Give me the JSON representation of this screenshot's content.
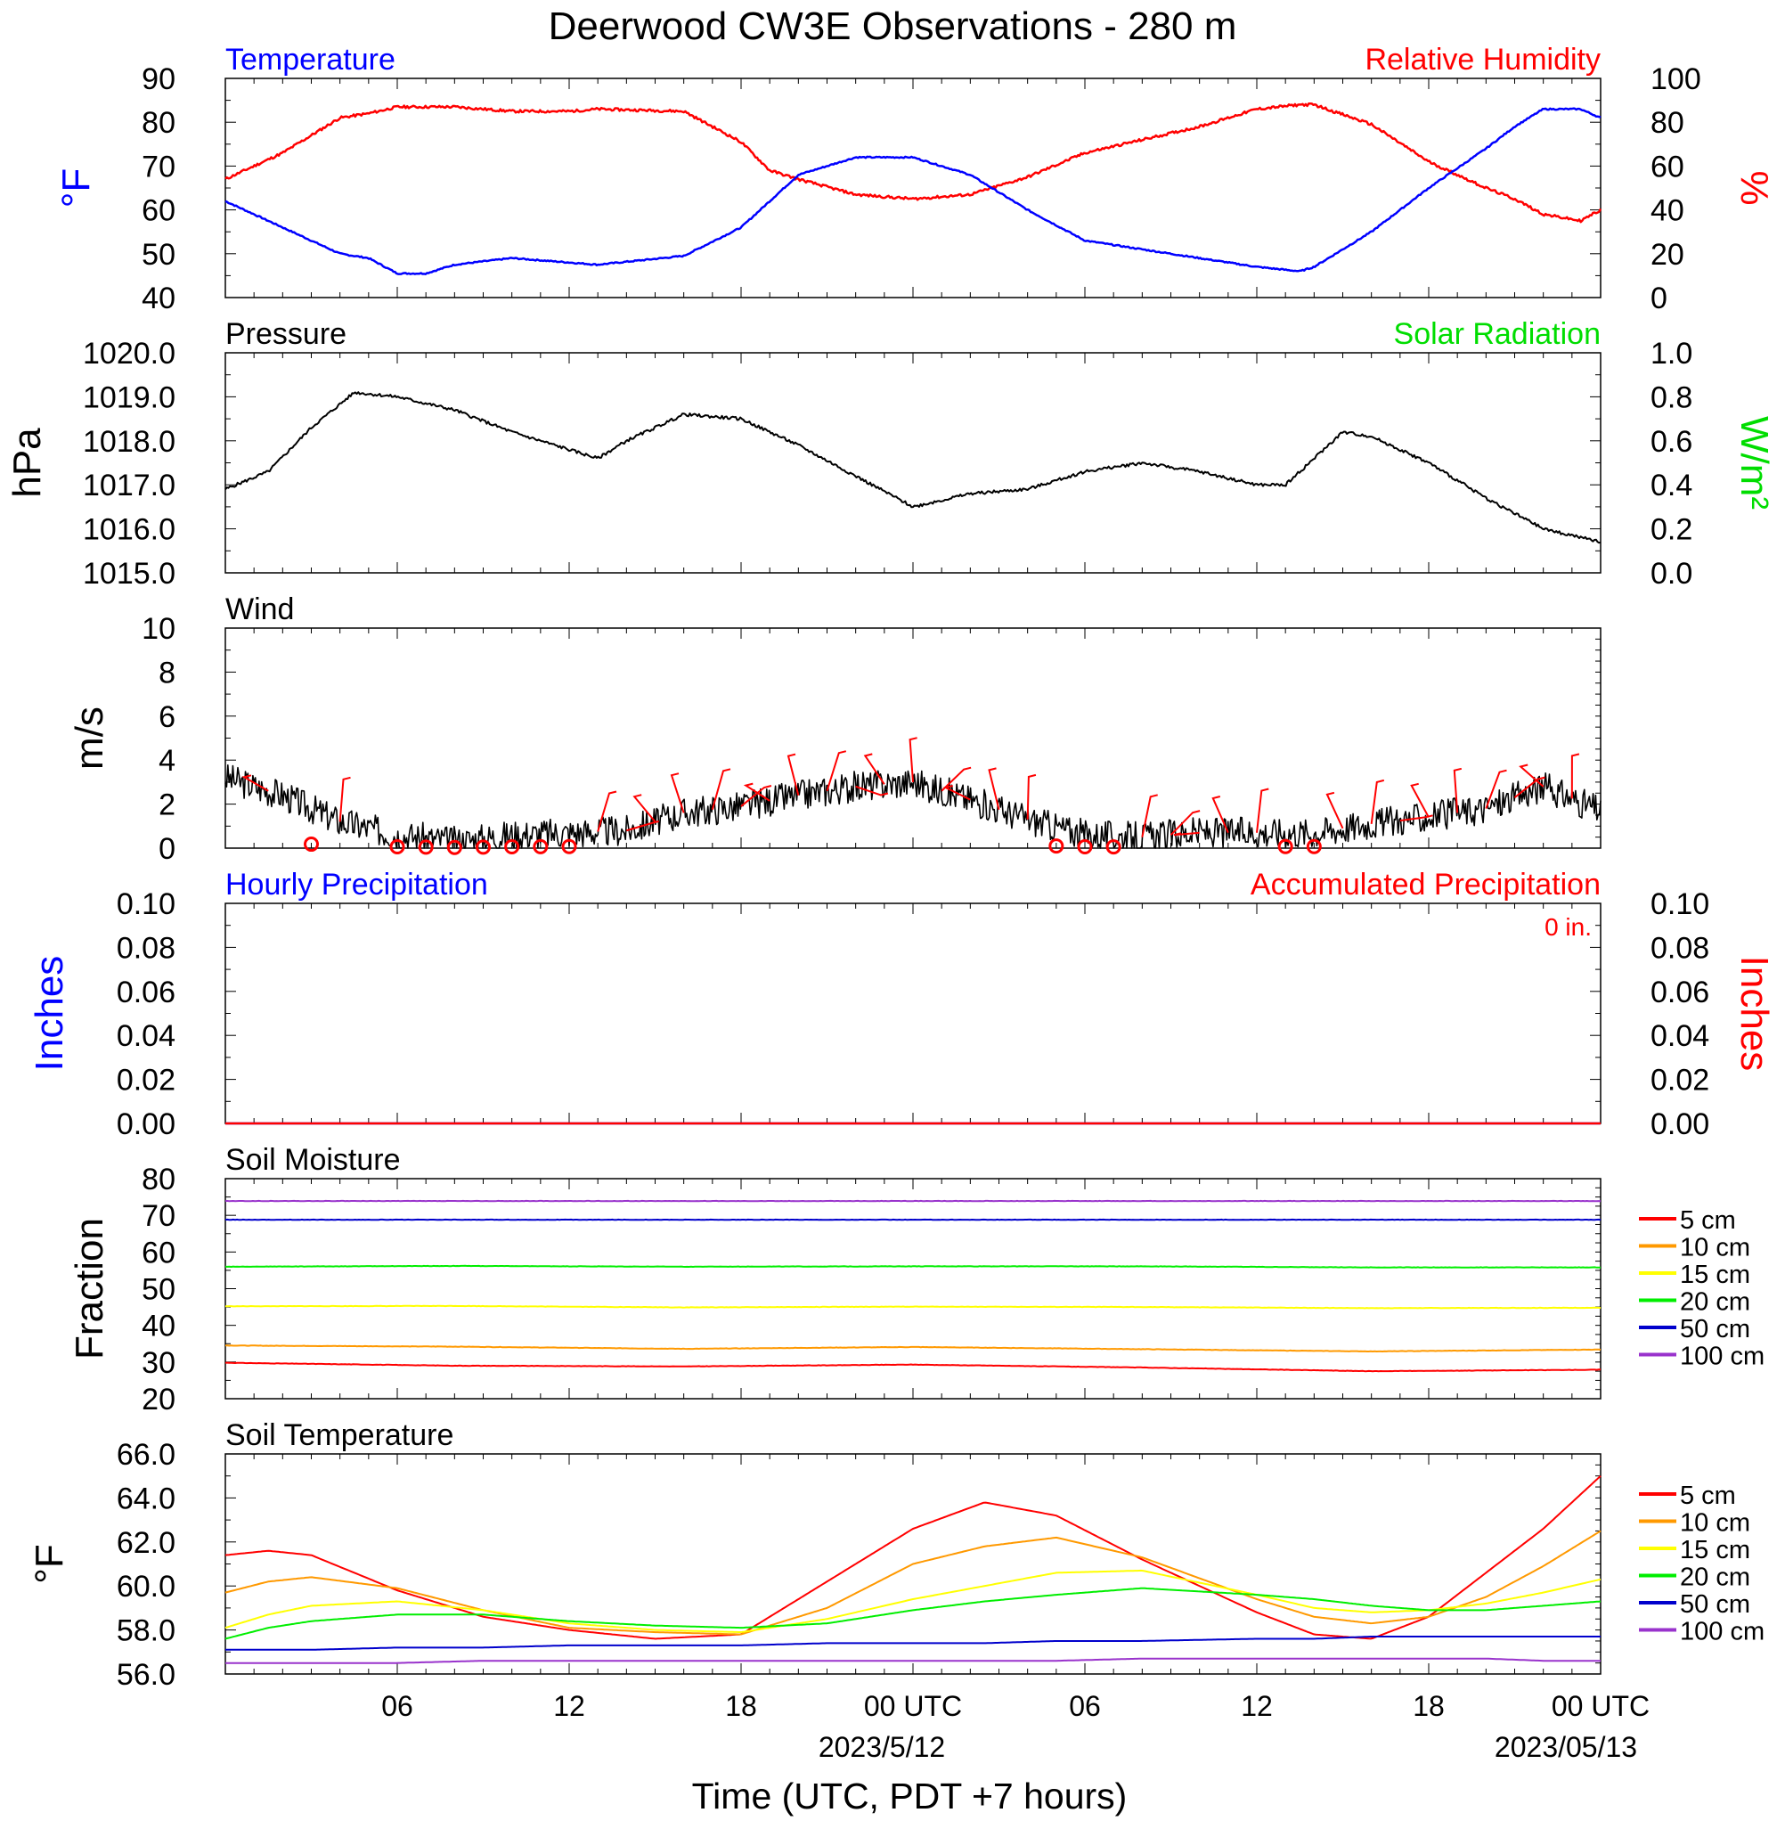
{
  "title": "Deerwood CW3E Observations - 280 m",
  "x_axis": {
    "tick_labels": [
      "06",
      "12",
      "18",
      "00 UTC",
      "06",
      "12",
      "18",
      "00 UTC"
    ],
    "date_labels": [
      "2023/5/12",
      "2023/05/13"
    ],
    "label": "Time (UTC, PDT +7 hours)"
  },
  "colors": {
    "temperature": "#0000ff",
    "humidity": "#ff0000",
    "solar": "#00dd00",
    "pressure": "#000000",
    "wind": "#000000",
    "barb": "#ff0000",
    "soil": [
      "#ff0000",
      "#ff9900",
      "#ffff00",
      "#00ee00",
      "#0000cc",
      "#9933cc"
    ]
  },
  "chart_data": [
    {
      "type": "line",
      "panel": "temp-rh",
      "left_title": "Temperature",
      "right_title": "Relative Humidity",
      "ylabel_left": "°F",
      "ylabel_right": "%",
      "ylim_left": [
        40,
        90
      ],
      "ylim_right": [
        0,
        100
      ],
      "yticks_left": [
        "90",
        "80",
        "70",
        "60",
        "50",
        "40"
      ],
      "yticks_right": [
        "100",
        "80",
        "60",
        "40",
        "20",
        "0"
      ],
      "x_hours": [
        0,
        2,
        4,
        5,
        6,
        7,
        8,
        10,
        12,
        13,
        16,
        18,
        19,
        20,
        22,
        24,
        26,
        28,
        30,
        32,
        34,
        36,
        37.5,
        38,
        40,
        42,
        44,
        45,
        46,
        47.3,
        48
      ],
      "series": [
        {
          "name": "Temperature",
          "values": [
            62,
            56,
            50,
            49,
            45.5,
            45.5,
            47.5,
            49,
            48,
            47.5,
            49.5,
            56,
            62,
            68,
            72,
            72,
            68,
            60,
            53,
            51,
            49,
            47,
            46,
            47,
            55,
            65,
            74,
            79,
            83,
            83,
            81
          ]
        },
        {
          "name": "Relative Humidity",
          "values": [
            54,
            66,
            82,
            84,
            87,
            87,
            87,
            85,
            85,
            86,
            85,
            71,
            58,
            54,
            47,
            45,
            47,
            55,
            66,
            72,
            78,
            86,
            88,
            88,
            79,
            62,
            50,
            45,
            38,
            35,
            40
          ]
        }
      ]
    },
    {
      "type": "line",
      "panel": "pressure",
      "left_title": "Pressure",
      "right_title": "Solar Radiation",
      "ylabel_left": "hPa",
      "ylabel_right": "W/m²",
      "ylim_left": [
        1015.0,
        1020.0
      ],
      "ylim_right": [
        0,
        1
      ],
      "yticks_left": [
        "1020.0",
        "1019.0",
        "1018.0",
        "1017.0",
        "1016.0",
        "1015.0"
      ],
      "yticks_right": [
        "1.0",
        "0.8",
        "0.6",
        "0.4",
        "0.2",
        "0.0"
      ],
      "x_hours": [
        0,
        1.5,
        3,
        4.5,
        6,
        8,
        10,
        12,
        13,
        14,
        16,
        18,
        20,
        22,
        24,
        26,
        28,
        30,
        32,
        34,
        36,
        37,
        38,
        39,
        40,
        42,
        44,
        46,
        48
      ],
      "series": [
        {
          "name": "Pressure",
          "values": [
            1016.9,
            1017.3,
            1018.3,
            1019.1,
            1019.0,
            1018.7,
            1018.2,
            1017.8,
            1017.6,
            1018.0,
            1018.6,
            1018.5,
            1017.9,
            1017.2,
            1016.5,
            1016.8,
            1016.9,
            1017.3,
            1017.5,
            1017.3,
            1017.0,
            1017.0,
            1017.6,
            1018.2,
            1018.1,
            1017.5,
            1016.7,
            1016.0,
            1015.7
          ]
        }
      ]
    },
    {
      "type": "line",
      "panel": "wind",
      "left_title": "Wind",
      "ylabel_left": "m/s",
      "ylim_left": [
        0,
        10
      ],
      "yticks_left": [
        "10",
        "8",
        "6",
        "4",
        "2",
        "0"
      ],
      "x_hours": [
        0,
        2,
        4,
        6,
        8,
        10,
        12,
        14,
        16,
        18,
        20,
        22,
        24,
        26,
        28,
        30,
        32,
        34,
        36,
        38,
        40,
        42,
        44,
        46,
        48
      ],
      "series": [
        {
          "name": "Wind",
          "values": [
            3.2,
            2.4,
            1.2,
            0.6,
            0.3,
            0.6,
            0.7,
            0.8,
            1.6,
            1.9,
            2.4,
            2.8,
            3.0,
            2.2,
            1.3,
            0.6,
            0.5,
            0.7,
            0.7,
            0.7,
            1.1,
            1.4,
            1.8,
            2.8,
            1.7
          ]
        }
      ],
      "barbs": [
        {
          "hour": 1.5,
          "calm": false
        },
        {
          "hour": 3,
          "calm": true
        },
        {
          "hour": 4,
          "calm": false
        },
        {
          "hour": 6,
          "calm": true
        },
        {
          "hour": 7,
          "calm": true
        },
        {
          "hour": 8,
          "calm": true
        },
        {
          "hour": 9,
          "calm": true
        },
        {
          "hour": 10,
          "calm": true
        },
        {
          "hour": 11,
          "calm": true
        },
        {
          "hour": 12,
          "calm": true
        },
        {
          "hour": 13,
          "calm": false
        },
        {
          "hour": 14,
          "calm": false
        },
        {
          "hour": 15,
          "calm": false
        },
        {
          "hour": 16,
          "calm": false
        },
        {
          "hour": 17,
          "calm": false
        },
        {
          "hour": 18,
          "calm": false
        },
        {
          "hour": 19,
          "calm": false
        },
        {
          "hour": 20,
          "calm": false
        },
        {
          "hour": 21,
          "calm": false
        },
        {
          "hour": 22,
          "calm": false
        },
        {
          "hour": 23,
          "calm": false
        },
        {
          "hour": 24,
          "calm": false
        },
        {
          "hour": 25,
          "calm": false
        },
        {
          "hour": 26,
          "calm": false
        },
        {
          "hour": 27,
          "calm": false
        },
        {
          "hour": 28,
          "calm": false
        },
        {
          "hour": 29,
          "calm": true
        },
        {
          "hour": 30,
          "calm": true
        },
        {
          "hour": 31,
          "calm": true
        },
        {
          "hour": 32,
          "calm": false
        },
        {
          "hour": 33,
          "calm": false
        },
        {
          "hour": 34,
          "calm": false
        },
        {
          "hour": 35,
          "calm": false
        },
        {
          "hour": 36,
          "calm": false
        },
        {
          "hour": 37,
          "calm": true
        },
        {
          "hour": 38,
          "calm": true
        },
        {
          "hour": 39,
          "calm": false
        },
        {
          "hour": 40,
          "calm": false
        },
        {
          "hour": 41,
          "calm": false
        },
        {
          "hour": 42,
          "calm": false
        },
        {
          "hour": 43,
          "calm": false
        },
        {
          "hour": 44,
          "calm": false
        },
        {
          "hour": 45,
          "calm": false
        },
        {
          "hour": 46,
          "calm": false
        },
        {
          "hour": 47,
          "calm": false
        }
      ]
    },
    {
      "type": "line",
      "panel": "precip",
      "left_title": "Hourly Precipitation",
      "right_title": "Accumulated Precipitation",
      "annotation": "0 in.",
      "ylabel_left": "Inches",
      "ylabel_right": "Inches",
      "ylim_left": [
        0,
        0.1
      ],
      "ylim_right": [
        0,
        0.1
      ],
      "yticks_left": [
        "0.10",
        "0.08",
        "0.06",
        "0.04",
        "0.02",
        "0.00"
      ],
      "yticks_right": [
        "0.10",
        "0.08",
        "0.06",
        "0.04",
        "0.02",
        "0.00"
      ],
      "x_hours": [
        0,
        48
      ],
      "series": [
        {
          "name": "Hourly Precipitation",
          "values": [
            0,
            0
          ]
        },
        {
          "name": "Accumulated Precipitation",
          "values": [
            0,
            0
          ]
        }
      ]
    },
    {
      "type": "line",
      "panel": "soil-moisture",
      "left_title": "Soil Moisture",
      "ylabel_left": "Fraction",
      "ylim_left": [
        20,
        80
      ],
      "yticks_left": [
        "80",
        "70",
        "60",
        "50",
        "40",
        "30",
        "20"
      ],
      "x_hours": [
        0,
        8,
        16,
        24,
        32,
        40,
        48
      ],
      "series": [
        {
          "name": "5 cm",
          "values": [
            29.8,
            29.0,
            28.8,
            29.3,
            28.5,
            27.5,
            27.9
          ]
        },
        {
          "name": "10 cm",
          "values": [
            34.5,
            34.2,
            33.6,
            34.1,
            33.5,
            32.9,
            33.4
          ]
        },
        {
          "name": "15 cm",
          "values": [
            45.2,
            45.3,
            44.9,
            45.1,
            45.0,
            44.7,
            44.8
          ]
        },
        {
          "name": "20 cm",
          "values": [
            56.0,
            56.2,
            56.0,
            56.1,
            56.1,
            55.8,
            55.8
          ]
        },
        {
          "name": "50 cm",
          "values": [
            68.8,
            68.8,
            68.8,
            68.8,
            68.8,
            68.8,
            68.8
          ]
        },
        {
          "name": "100 cm",
          "values": [
            73.9,
            73.9,
            73.9,
            73.9,
            73.9,
            73.9,
            73.9
          ]
        }
      ]
    },
    {
      "type": "line",
      "panel": "soil-temperature",
      "left_title": "Soil Temperature",
      "ylabel_left": "°F",
      "ylim_left": [
        56,
        66
      ],
      "yticks_left": [
        "66.0",
        "64.0",
        "62.0",
        "60.0",
        "58.0",
        "56.0"
      ],
      "x_hours": [
        0,
        1.5,
        3,
        6,
        9,
        12,
        15,
        18,
        21,
        24,
        26.5,
        29,
        32,
        36,
        38,
        40,
        42,
        44,
        46,
        48
      ],
      "series": [
        {
          "name": "5 cm",
          "values": [
            61.4,
            61.6,
            61.4,
            59.8,
            58.6,
            58.0,
            57.6,
            57.8,
            60.2,
            62.6,
            63.8,
            63.2,
            61.2,
            58.8,
            57.8,
            57.6,
            58.6,
            60.6,
            62.6,
            65.0
          ]
        },
        {
          "name": "10 cm",
          "values": [
            59.7,
            60.2,
            60.4,
            59.9,
            58.9,
            58.1,
            57.9,
            57.8,
            59.0,
            61.0,
            61.8,
            62.2,
            61.3,
            59.4,
            58.6,
            58.3,
            58.6,
            59.5,
            60.9,
            62.5
          ]
        },
        {
          "name": "15 cm",
          "values": [
            58.1,
            58.7,
            59.1,
            59.3,
            58.9,
            58.3,
            58.0,
            57.9,
            58.5,
            59.4,
            60.0,
            60.6,
            60.7,
            59.6,
            59.0,
            58.8,
            58.9,
            59.2,
            59.7,
            60.3
          ]
        },
        {
          "name": "20 cm",
          "values": [
            57.6,
            58.1,
            58.4,
            58.7,
            58.7,
            58.4,
            58.2,
            58.1,
            58.3,
            58.9,
            59.3,
            59.6,
            59.9,
            59.6,
            59.4,
            59.1,
            58.9,
            58.9,
            59.1,
            59.3
          ]
        },
        {
          "name": "50 cm",
          "values": [
            57.1,
            57.1,
            57.1,
            57.2,
            57.2,
            57.3,
            57.3,
            57.3,
            57.4,
            57.4,
            57.4,
            57.5,
            57.5,
            57.6,
            57.6,
            57.7,
            57.7,
            57.7,
            57.7,
            57.7
          ]
        },
        {
          "name": "100 cm",
          "values": [
            56.5,
            56.5,
            56.5,
            56.5,
            56.6,
            56.6,
            56.6,
            56.6,
            56.6,
            56.6,
            56.6,
            56.6,
            56.7,
            56.7,
            56.7,
            56.7,
            56.7,
            56.7,
            56.6,
            56.6
          ]
        }
      ]
    }
  ]
}
